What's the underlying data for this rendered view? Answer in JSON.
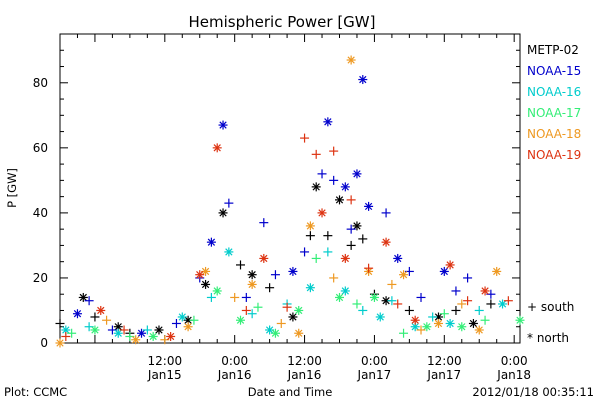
{
  "chart_data": {
    "type": "scatter",
    "title": "Hemispheric Power [GW]",
    "ylabel": "P [GW]",
    "xlabel": "Date and Time",
    "xlim": [
      "2012-01-14 18:00",
      "2012-01-18 01:00"
    ],
    "ylim": [
      0,
      95
    ],
    "yticks": [
      0,
      20,
      40,
      60,
      80
    ],
    "xticks": [
      {
        "at": "2012-01-15 12:00",
        "time": "12:00",
        "date": "Jan15"
      },
      {
        "at": "2012-01-16 00:00",
        "time": "0:00",
        "date": "Jan16"
      },
      {
        "at": "2012-01-16 12:00",
        "time": "12:00",
        "date": "Jan16"
      },
      {
        "at": "2012-01-17 00:00",
        "time": "0:00",
        "date": "Jan17"
      },
      {
        "at": "2012-01-17 12:00",
        "time": "12:00",
        "date": "Jan17"
      },
      {
        "at": "2012-01-18 00:00",
        "time": "0:00",
        "date": "Jan18"
      }
    ],
    "hemisphere_legend": [
      {
        "symbol": "+",
        "label": "south"
      },
      {
        "symbol": "*",
        "label": "north"
      }
    ],
    "series": [
      {
        "name": "METP-02",
        "color": "#000000",
        "points": [
          [
            "2012-01-14 18:00",
            6,
            "+"
          ],
          [
            "2012-01-14 22:00",
            14,
            "*"
          ],
          [
            "2012-01-15 00:00",
            8,
            "+"
          ],
          [
            "2012-01-15 04:00",
            5,
            "*"
          ],
          [
            "2012-01-15 06:00",
            3,
            "+"
          ],
          [
            "2012-01-15 11:00",
            4,
            "*"
          ],
          [
            "2012-01-15 16:00",
            7,
            "*"
          ],
          [
            "2012-01-15 19:00",
            18,
            "*"
          ],
          [
            "2012-01-15 22:00",
            40,
            "*"
          ],
          [
            "2012-01-16 01:00",
            24,
            "+"
          ],
          [
            "2012-01-16 03:00",
            21,
            "*"
          ],
          [
            "2012-01-16 06:00",
            17,
            "+"
          ],
          [
            "2012-01-16 10:00",
            8,
            "*"
          ],
          [
            "2012-01-16 13:00",
            33,
            "+"
          ],
          [
            "2012-01-16 14:00",
            48,
            "*"
          ],
          [
            "2012-01-16 16:00",
            33,
            "+"
          ],
          [
            "2012-01-16 18:00",
            44,
            "*"
          ],
          [
            "2012-01-16 20:00",
            30,
            "+"
          ],
          [
            "2012-01-16 21:00",
            36,
            "*"
          ],
          [
            "2012-01-16 22:00",
            32,
            "+"
          ],
          [
            "2012-01-17 00:00",
            15,
            "+"
          ],
          [
            "2012-01-17 02:00",
            13,
            "*"
          ],
          [
            "2012-01-17 06:00",
            10,
            "+"
          ],
          [
            "2012-01-17 11:00",
            8,
            "*"
          ],
          [
            "2012-01-17 14:00",
            10,
            "+"
          ],
          [
            "2012-01-17 17:00",
            6,
            "*"
          ],
          [
            "2012-01-17 20:00",
            12,
            "+"
          ]
        ]
      },
      {
        "name": "NOAA-15",
        "color": "#0000cc",
        "points": [
          [
            "2012-01-14 21:00",
            9,
            "*"
          ],
          [
            "2012-01-14 23:00",
            13,
            "+"
          ],
          [
            "2012-01-15 03:00",
            4,
            "+"
          ],
          [
            "2012-01-15 08:00",
            3,
            "*"
          ],
          [
            "2012-01-15 14:00",
            6,
            "+"
          ],
          [
            "2012-01-15 18:00",
            20,
            "+"
          ],
          [
            "2012-01-15 20:00",
            31,
            "*"
          ],
          [
            "2012-01-15 22:00",
            67,
            "*"
          ],
          [
            "2012-01-15 23:00",
            43,
            "+"
          ],
          [
            "2012-01-16 02:00",
            14,
            "+"
          ],
          [
            "2012-01-16 05:00",
            37,
            "+"
          ],
          [
            "2012-01-16 07:00",
            21,
            "+"
          ],
          [
            "2012-01-16 10:00",
            22,
            "*"
          ],
          [
            "2012-01-16 12:00",
            28,
            "+"
          ],
          [
            "2012-01-16 15:00",
            52,
            "+"
          ],
          [
            "2012-01-16 16:00",
            68,
            "*"
          ],
          [
            "2012-01-16 17:00",
            50,
            "+"
          ],
          [
            "2012-01-16 19:00",
            48,
            "*"
          ],
          [
            "2012-01-16 20:00",
            35,
            "+"
          ],
          [
            "2012-01-16 21:00",
            52,
            "*"
          ],
          [
            "2012-01-16 22:00",
            81,
            "*"
          ],
          [
            "2012-01-16 23:00",
            42,
            "*"
          ],
          [
            "2012-01-17 02:00",
            40,
            "+"
          ],
          [
            "2012-01-17 04:00",
            26,
            "*"
          ],
          [
            "2012-01-17 06:00",
            22,
            "+"
          ],
          [
            "2012-01-17 08:00",
            14,
            "+"
          ],
          [
            "2012-01-17 12:00",
            22,
            "*"
          ],
          [
            "2012-01-17 14:00",
            16,
            "+"
          ],
          [
            "2012-01-17 16:00",
            20,
            "+"
          ],
          [
            "2012-01-17 20:00",
            15,
            "+"
          ]
        ]
      },
      {
        "name": "NOAA-16",
        "color": "#00cccc",
        "points": [
          [
            "2012-01-14 19:00",
            4,
            "*"
          ],
          [
            "2012-01-14 23:00",
            5,
            "+"
          ],
          [
            "2012-01-15 04:00",
            3,
            "*"
          ],
          [
            "2012-01-15 09:00",
            4,
            "+"
          ],
          [
            "2012-01-15 15:00",
            8,
            "*"
          ],
          [
            "2012-01-15 20:00",
            14,
            "+"
          ],
          [
            "2012-01-15 23:00",
            28,
            "*"
          ],
          [
            "2012-01-16 03:00",
            9,
            "+"
          ],
          [
            "2012-01-16 06:00",
            4,
            "*"
          ],
          [
            "2012-01-16 09:00",
            12,
            "+"
          ],
          [
            "2012-01-16 13:00",
            17,
            "*"
          ],
          [
            "2012-01-16 16:00",
            28,
            "+"
          ],
          [
            "2012-01-16 19:00",
            16,
            "*"
          ],
          [
            "2012-01-16 22:00",
            10,
            "+"
          ],
          [
            "2012-01-17 01:00",
            8,
            "*"
          ],
          [
            "2012-01-17 03:00",
            13,
            "+"
          ],
          [
            "2012-01-17 07:00",
            5,
            "*"
          ],
          [
            "2012-01-17 10:00",
            8,
            "+"
          ],
          [
            "2012-01-17 13:00",
            6,
            "*"
          ],
          [
            "2012-01-17 18:00",
            10,
            "+"
          ],
          [
            "2012-01-17 22:00",
            12,
            "*"
          ]
        ]
      },
      {
        "name": "NOAA-17",
        "color": "#33ee77",
        "points": [
          [
            "2012-01-14 20:00",
            3,
            "+"
          ],
          [
            "2012-01-15 00:00",
            4,
            "*"
          ],
          [
            "2012-01-15 06:00",
            2,
            "+"
          ],
          [
            "2012-01-15 10:00",
            2,
            "*"
          ],
          [
            "2012-01-15 17:00",
            7,
            "+"
          ],
          [
            "2012-01-15 21:00",
            16,
            "*"
          ],
          [
            "2012-01-16 01:00",
            7,
            "*"
          ],
          [
            "2012-01-16 04:00",
            11,
            "+"
          ],
          [
            "2012-01-16 07:00",
            3,
            "*"
          ],
          [
            "2012-01-16 11:00",
            10,
            "*"
          ],
          [
            "2012-01-16 14:00",
            26,
            "+"
          ],
          [
            "2012-01-16 18:00",
            14,
            "*"
          ],
          [
            "2012-01-16 21:00",
            12,
            "+"
          ],
          [
            "2012-01-17 00:00",
            14,
            "*"
          ],
          [
            "2012-01-17 05:00",
            3,
            "+"
          ],
          [
            "2012-01-17 09:00",
            5,
            "*"
          ],
          [
            "2012-01-17 12:00",
            9,
            "+"
          ],
          [
            "2012-01-17 15:00",
            5,
            "*"
          ],
          [
            "2012-01-17 19:00",
            7,
            "+"
          ],
          [
            "2012-01-18 01:00",
            7,
            "*"
          ]
        ]
      },
      {
        "name": "NOAA-18",
        "color": "#ee9922",
        "points": [
          [
            "2012-01-14 18:00",
            0,
            "*"
          ],
          [
            "2012-01-15 02:00",
            7,
            "+"
          ],
          [
            "2012-01-15 07:00",
            1,
            "*"
          ],
          [
            "2012-01-15 12:00",
            1,
            "+"
          ],
          [
            "2012-01-15 16:00",
            5,
            "*"
          ],
          [
            "2012-01-15 19:00",
            22,
            "*"
          ],
          [
            "2012-01-16 00:00",
            14,
            "+"
          ],
          [
            "2012-01-16 03:00",
            18,
            "*"
          ],
          [
            "2012-01-16 08:00",
            6,
            "+"
          ],
          [
            "2012-01-16 11:00",
            3,
            "*"
          ],
          [
            "2012-01-16 13:00",
            36,
            "*"
          ],
          [
            "2012-01-16 17:00",
            20,
            "+"
          ],
          [
            "2012-01-16 20:00",
            87,
            "*"
          ],
          [
            "2012-01-16 23:00",
            22,
            "*"
          ],
          [
            "2012-01-17 03:00",
            18,
            "+"
          ],
          [
            "2012-01-17 05:00",
            21,
            "*"
          ],
          [
            "2012-01-17 08:00",
            4,
            "+"
          ],
          [
            "2012-01-17 11:00",
            6,
            "*"
          ],
          [
            "2012-01-17 15:00",
            12,
            "+"
          ],
          [
            "2012-01-17 18:00",
            4,
            "*"
          ],
          [
            "2012-01-17 21:00",
            22,
            "*"
          ]
        ]
      },
      {
        "name": "NOAA-19",
        "color": "#dd3311",
        "points": [
          [
            "2012-01-14 19:00",
            2,
            "+"
          ],
          [
            "2012-01-15 01:00",
            10,
            "*"
          ],
          [
            "2012-01-15 05:00",
            4,
            "+"
          ],
          [
            "2012-01-15 13:00",
            2,
            "*"
          ],
          [
            "2012-01-15 18:00",
            21,
            "*"
          ],
          [
            "2012-01-15 21:00",
            60,
            "*"
          ],
          [
            "2012-01-16 02:00",
            10,
            "+"
          ],
          [
            "2012-01-16 05:00",
            26,
            "*"
          ],
          [
            "2012-01-16 09:00",
            11,
            "+"
          ],
          [
            "2012-01-16 12:00",
            63,
            "+"
          ],
          [
            "2012-01-16 14:00",
            58,
            "+"
          ],
          [
            "2012-01-16 15:00",
            40,
            "*"
          ],
          [
            "2012-01-16 17:00",
            59,
            "+"
          ],
          [
            "2012-01-16 19:00",
            26,
            "*"
          ],
          [
            "2012-01-16 20:00",
            44,
            "+"
          ],
          [
            "2012-01-16 23:00",
            23,
            "+"
          ],
          [
            "2012-01-17 02:00",
            31,
            "*"
          ],
          [
            "2012-01-17 04:00",
            12,
            "+"
          ],
          [
            "2012-01-17 07:00",
            7,
            "*"
          ],
          [
            "2012-01-17 13:00",
            24,
            "*"
          ],
          [
            "2012-01-17 16:00",
            13,
            "+"
          ],
          [
            "2012-01-17 19:00",
            16,
            "*"
          ],
          [
            "2012-01-17 23:00",
            13,
            "+"
          ]
        ]
      }
    ]
  },
  "footer": {
    "left": "Plot: CCMC",
    "right": "2012/01/18 00:35:11"
  }
}
